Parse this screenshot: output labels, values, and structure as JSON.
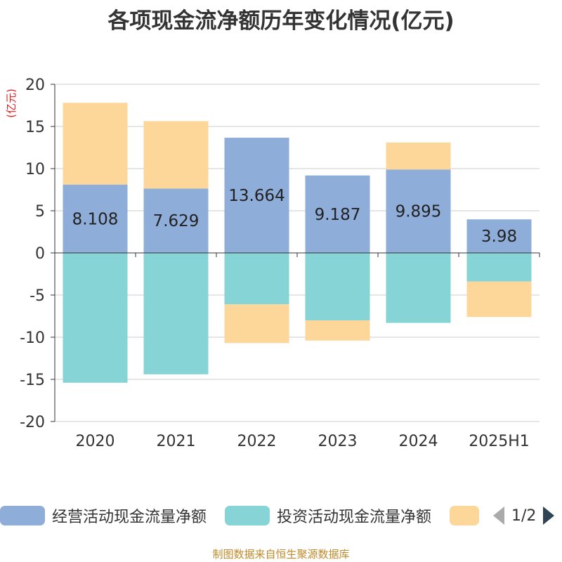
{
  "title": "各项现金流净额历年变化情况(亿元)",
  "footer": "制图数据来自恒生聚源数据库",
  "colors": {
    "operating": "#8eadd8",
    "investing": "#86d4d6",
    "financing": "#fdd799",
    "axis": "#333333",
    "grid": "#cccccc",
    "unit": "#e02020"
  },
  "legend": {
    "items": [
      {
        "label": "经营活动现金流量净额",
        "color": "#8eadd8"
      },
      {
        "label": "投资活动现金流量净额",
        "color": "#86d4d6"
      },
      {
        "label": "",
        "color": "#fdd799"
      }
    ],
    "page": "1/2",
    "prev_icon": "triangle-left-icon",
    "next_icon": "triangle-right-icon"
  },
  "chart_data": {
    "type": "bar",
    "stacked": true,
    "unit_label": "(亿元)",
    "categories": [
      "2020",
      "2021",
      "2022",
      "2023",
      "2024",
      "2025H1"
    ],
    "ylim": [
      -20,
      20
    ],
    "yticks": [
      20,
      15,
      10,
      5,
      0,
      -5,
      -10,
      -15,
      -20
    ],
    "grid": true,
    "legend_position": "bottom",
    "series": [
      {
        "name": "经营活动现金流量净额",
        "values": [
          8.108,
          7.629,
          13.664,
          9.187,
          9.895,
          3.98
        ],
        "labels": [
          "8.108",
          "7.629",
          "13.664",
          "9.187",
          "9.895",
          "3.98"
        ]
      },
      {
        "name": "投资活动现金流量净额",
        "values": [
          -15.4,
          -14.4,
          -6.1,
          -8.0,
          -8.3,
          -3.4
        ]
      },
      {
        "name": "",
        "values": [
          9.7,
          8.0,
          -4.6,
          -2.4,
          3.2,
          -4.2
        ]
      }
    ]
  }
}
